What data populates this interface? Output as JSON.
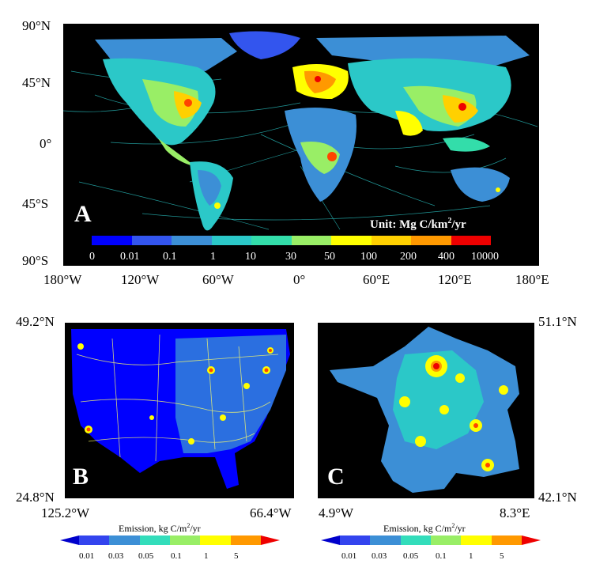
{
  "panel_a": {
    "label": "A",
    "unit_text": "Unit: Mg C/km",
    "unit_sup": "2",
    "unit_tail": "/yr",
    "lat_labels": [
      "90°N",
      "45°N",
      "0°",
      "45°S",
      "90°S"
    ],
    "lon_labels": [
      "180°W",
      "120°W",
      "60°W",
      "0°",
      "60°E",
      "120°E",
      "180°E"
    ],
    "colorbar_ticks": [
      "0",
      "0.01",
      "0.1",
      "1",
      "10",
      "30",
      "50",
      "100",
      "200",
      "400",
      "10000"
    ],
    "colorbar_colors": [
      "#0000ff",
      "#3355ee",
      "#3c8fd6",
      "#2bc8c8",
      "#33ddaa",
      "#99ee66",
      "#ffff00",
      "#ffd000",
      "#ff9900",
      "#ff4400",
      "#ee0000"
    ]
  },
  "panel_b": {
    "label": "B",
    "lat_top": "49.2°N",
    "lat_bottom": "24.8°N",
    "lon_left": "125.2°W",
    "lon_right": "66.4°W"
  },
  "panel_c": {
    "label": "C",
    "lat_top": "51.1°N",
    "lat_bottom": "42.1°N",
    "lon_left": "4.9°W",
    "lon_right": "8.3°E"
  },
  "small_colorbar": {
    "title": "Emission, kg C/m",
    "title_sup": "2",
    "title_tail": "/yr",
    "ticks": [
      "0.01",
      "0.03",
      "0.05",
      "0.1",
      "1",
      "5"
    ],
    "colors": [
      "#3344ee",
      "#3c8fd6",
      "#33ddbb",
      "#99ee66",
      "#ffff00",
      "#ff9900"
    ],
    "end_low": "#0000cc",
    "end_high": "#ee0000"
  }
}
